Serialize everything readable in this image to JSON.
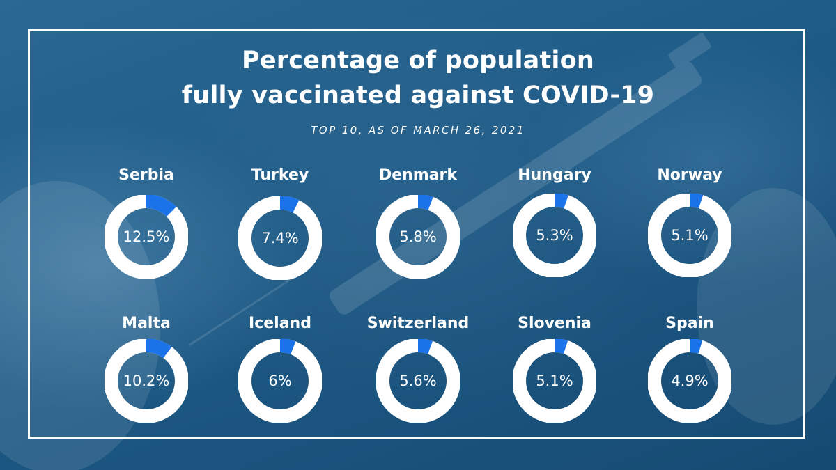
{
  "chart_data": {
    "type": "donut",
    "title_lines": [
      "Percentage of population",
      "fully vaccinated against COVID-19"
    ],
    "subtitle": "TOP 10, AS OF MARCH 26, 2021",
    "unit": "%",
    "items": [
      {
        "country": "Serbia",
        "value": 12.5,
        "label": "12.5%"
      },
      {
        "country": "Turkey",
        "value": 7.4,
        "label": "7.4%"
      },
      {
        "country": "Denmark",
        "value": 5.8,
        "label": "5.8%"
      },
      {
        "country": "Hungary",
        "value": 5.3,
        "label": "5.3%"
      },
      {
        "country": "Norway",
        "value": 5.1,
        "label": "5.1%"
      },
      {
        "country": "Malta",
        "value": 10.2,
        "label": "10.2%"
      },
      {
        "country": "Iceland",
        "value": 6,
        "label": "6%"
      },
      {
        "country": "Switzerland",
        "value": 5.6,
        "label": "5.6%"
      },
      {
        "country": "Slovenia",
        "value": 5.1,
        "label": "5.1%"
      },
      {
        "country": "Spain",
        "value": 4.9,
        "label": "4.9%"
      }
    ],
    "colors": {
      "background": "#1d5a86",
      "ring": "#ffffff",
      "filled_segment": "#1a73e8",
      "text": "#ffffff"
    }
  }
}
